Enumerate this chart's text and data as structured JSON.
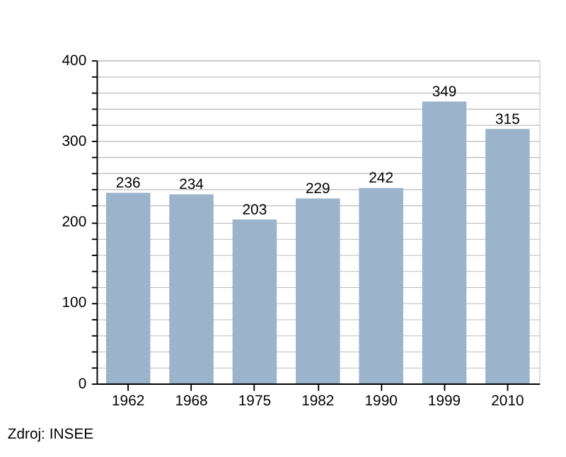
{
  "chart_data": {
    "type": "bar",
    "categories": [
      "1962",
      "1968",
      "1975",
      "1982",
      "1990",
      "1999",
      "2010"
    ],
    "values": [
      236,
      234,
      203,
      229,
      242,
      349,
      315
    ],
    "color": "#9cb3cc",
    "ylim": [
      0,
      400
    ],
    "yticks": [
      0,
      {
        "value": 20,
        "label": null
      },
      {
        "value": 40,
        "label": null
      },
      {
        "value": 60,
        "label": null
      },
      {
        "value": 80,
        "label": null
      },
      100,
      {
        "value": 120,
        "label": null
      },
      {
        "value": 140,
        "label": null
      },
      {
        "value": 160,
        "label": null
      },
      {
        "value": 180,
        "label": null
      },
      200,
      {
        "value": 220,
        "label": null
      },
      {
        "value": 240,
        "label": null
      },
      {
        "value": 260,
        "label": null
      },
      {
        "value": 280,
        "label": null
      },
      300,
      {
        "value": 320,
        "label": null
      },
      {
        "value": 340,
        "label": null
      },
      {
        "value": 360,
        "label": null
      },
      {
        "value": 380,
        "label": null
      },
      400
    ],
    "grid": "y",
    "data_labels": true,
    "annotations": [
      "Zdroj: INSEE"
    ]
  }
}
